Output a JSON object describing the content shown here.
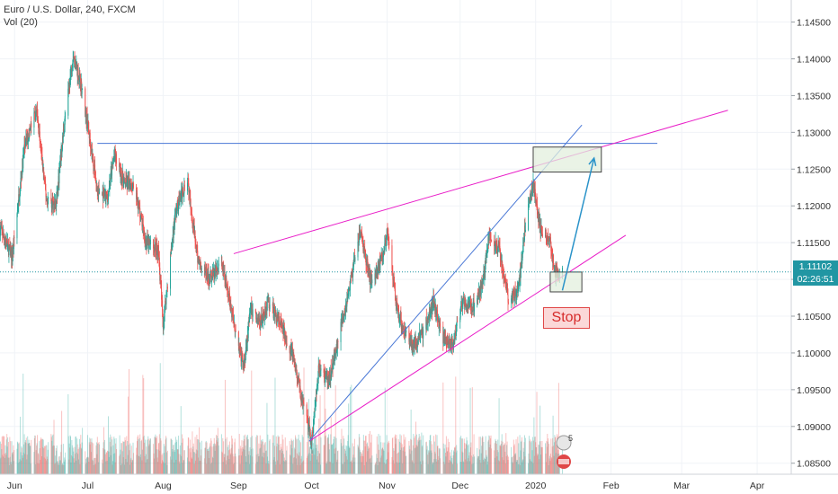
{
  "legend": {
    "symbol": "Euro / U.S. Dollar, 240, FXCM",
    "volume": "Vol (20)"
  },
  "price_scale": {
    "ticks": [
      "1.14500",
      "1.14000",
      "1.13500",
      "1.13000",
      "1.12500",
      "1.12000",
      "1.11500",
      "1.11000",
      "1.10500",
      "1.10000",
      "1.09500",
      "1.09000",
      "1.08500"
    ],
    "current_price": "1.11102",
    "countdown": "02:26:51"
  },
  "time_axis": {
    "labels": [
      "Jun",
      "Jul",
      "Aug",
      "Sep",
      "Oct",
      "Nov",
      "Dec",
      "2020",
      "Feb",
      "Mar",
      "Apr"
    ]
  },
  "annotation": {
    "stop_label": "Stop"
  },
  "colors": {
    "up": "#26a69a",
    "down": "#ef5350",
    "magenta_trend": "#e91ec8",
    "blue_line": "#4a78d6",
    "price_line": "#2196a3",
    "target_box_fill": "#e3efdd",
    "box_border": "#444444",
    "stop_fill": "#fbd8d8",
    "stop_border": "#e04848"
  },
  "chart_data": {
    "type": "candlestick",
    "title": "Euro / U.S. Dollar, 240, FXCM",
    "xlabel": "",
    "ylabel": "",
    "ylim": [
      1.0835,
      1.148
    ],
    "xrange": [
      "2019-05-26",
      "2020-04-15"
    ],
    "grid": true,
    "price_path": [
      [
        "2019-05-26",
        1.117
      ],
      [
        "2019-05-31",
        1.113
      ],
      [
        "2019-06-05",
        1.128
      ],
      [
        "2019-06-10",
        1.133
      ],
      [
        "2019-06-14",
        1.121
      ],
      [
        "2019-06-18",
        1.12
      ],
      [
        "2019-06-21",
        1.13
      ],
      [
        "2019-06-25",
        1.1405
      ],
      [
        "2019-06-28",
        1.137
      ],
      [
        "2019-07-02",
        1.129
      ],
      [
        "2019-07-05",
        1.122
      ],
      [
        "2019-07-09",
        1.121
      ],
      [
        "2019-07-12",
        1.127
      ],
      [
        "2019-07-16",
        1.123
      ],
      [
        "2019-07-20",
        1.123
      ],
      [
        "2019-07-25",
        1.115
      ],
      [
        "2019-07-30",
        1.114
      ],
      [
        "2019-08-01",
        1.104
      ],
      [
        "2019-08-06",
        1.119
      ],
      [
        "2019-08-11",
        1.124
      ],
      [
        "2019-08-15",
        1.113
      ],
      [
        "2019-08-20",
        1.11
      ],
      [
        "2019-08-25",
        1.112
      ],
      [
        "2019-08-29",
        1.106
      ],
      [
        "2019-09-03",
        1.098
      ],
      [
        "2019-09-06",
        1.106
      ],
      [
        "2019-09-10",
        1.104
      ],
      [
        "2019-09-13",
        1.107
      ],
      [
        "2019-09-18",
        1.104
      ],
      [
        "2019-09-23",
        1.1
      ],
      [
        "2019-09-28",
        1.092
      ],
      [
        "2019-10-01",
        1.088
      ],
      [
        "2019-10-04",
        1.098
      ],
      [
        "2019-10-08",
        1.096
      ],
      [
        "2019-10-12",
        1.102
      ],
      [
        "2019-10-16",
        1.108
      ],
      [
        "2019-10-21",
        1.1165
      ],
      [
        "2019-10-25",
        1.11
      ],
      [
        "2019-10-29",
        1.112
      ],
      [
        "2019-11-01",
        1.116
      ],
      [
        "2019-11-05",
        1.106
      ],
      [
        "2019-11-08",
        1.103
      ],
      [
        "2019-11-12",
        1.101
      ],
      [
        "2019-11-16",
        1.103
      ],
      [
        "2019-11-20",
        1.107
      ],
      [
        "2019-11-24",
        1.102
      ],
      [
        "2019-11-28",
        1.101
      ],
      [
        "2019-12-02",
        1.107
      ],
      [
        "2019-12-06",
        1.106
      ],
      [
        "2019-12-10",
        1.109
      ],
      [
        "2019-12-13",
        1.116
      ],
      [
        "2019-12-17",
        1.114
      ],
      [
        "2019-12-21",
        1.107
      ],
      [
        "2019-12-25",
        1.109
      ],
      [
        "2019-12-28",
        1.118
      ],
      [
        "2019-12-31",
        1.123
      ],
      [
        "2020-01-03",
        1.117
      ],
      [
        "2020-01-07",
        1.115
      ],
      [
        "2020-01-09",
        1.111
      ],
      [
        "2020-01-12",
        1.111
      ]
    ],
    "drawings": [
      {
        "kind": "horizontal",
        "color": "blue",
        "price": 1.1285,
        "from": "2019-07-05",
        "to": "2020-02-20"
      },
      {
        "kind": "trendline",
        "color": "magenta",
        "from": [
          "2019-08-30",
          1.1135
        ],
        "to": [
          "2020-03-20",
          1.133
        ]
      },
      {
        "kind": "trendline",
        "color": "magenta",
        "from": [
          "2019-09-30",
          1.088
        ],
        "to": [
          "2020-02-07",
          1.116
        ]
      },
      {
        "kind": "trendline",
        "color": "blue",
        "from": [
          "2019-09-30",
          1.088
        ],
        "to": [
          "2020-01-20",
          1.131
        ]
      },
      {
        "kind": "box",
        "label": "target",
        "from": [
          "2019-12-31",
          1.128
        ],
        "to": [
          "2020-01-28",
          1.1246
        ]
      },
      {
        "kind": "box",
        "label": "entry",
        "from": [
          "2020-01-07",
          1.111
        ],
        "to": [
          "2020-01-20",
          1.1083
        ]
      },
      {
        "kind": "arrow",
        "from": [
          "2020-01-12",
          1.1085
        ],
        "to": [
          "2020-01-25",
          1.1265
        ]
      }
    ],
    "volume_series": {
      "name": "Vol (20)"
    }
  }
}
